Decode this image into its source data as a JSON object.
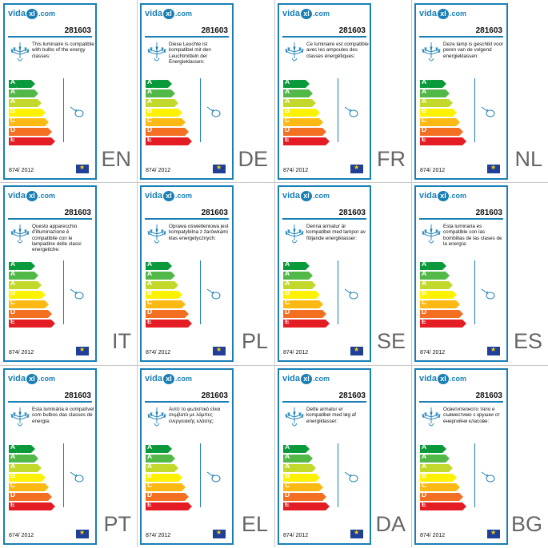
{
  "product_code": "281603",
  "brand": {
    "pre": "vida",
    "mid": "xl",
    "post": ".com"
  },
  "regulation": "874/ 2012",
  "energy_classes": [
    {
      "label": "A",
      "sup": "++",
      "color": "#0a9a3c",
      "width": 0.55
    },
    {
      "label": "A",
      "sup": "+",
      "color": "#52b848",
      "width": 0.62
    },
    {
      "label": "A",
      "sup": "",
      "color": "#c2d92b",
      "width": 0.69
    },
    {
      "label": "B",
      "sup": "",
      "color": "#fff200",
      "width": 0.76
    },
    {
      "label": "C",
      "sup": "",
      "color": "#fdb913",
      "width": 0.83
    },
    {
      "label": "D",
      "sup": "",
      "color": "#f36f21",
      "width": 0.9
    },
    {
      "label": "E",
      "sup": "",
      "color": "#e31d23",
      "width": 0.97
    }
  ],
  "labels": [
    {
      "lang": "EN",
      "text": "This luminaire is compatible with bulbs of the energy classes:"
    },
    {
      "lang": "DE",
      "text": "Diese Leuchte ist kompatibel mit den Leuchtmitteln der Energieklassen:"
    },
    {
      "lang": "FR",
      "text": "Ce luminaire est compatible avec les ampoules des classes énergétiques:"
    },
    {
      "lang": "NL",
      "text": "Deze lamp is geschikt voor peren van de volgend energieklassen:"
    },
    {
      "lang": "IT",
      "text": "Questo apparecchio d'illuminazione è compatibile con le lampadine delle classi energetiche:"
    },
    {
      "lang": "PL",
      "text": "Oprawa oświetleniowa jest kompatybilna z żarówkami klas energetycznych:"
    },
    {
      "lang": "SE",
      "text": "Denna armatur är kompatibel med lampor av följande energiklasser:"
    },
    {
      "lang": "ES",
      "text": "Esta luminaria es compatible con las bombillas de las clases de la energía:"
    },
    {
      "lang": "PT",
      "text": "Esta luminária é compatível com bulbos das classes de energia:"
    },
    {
      "lang": "EL",
      "text": "Αυτό το φωτιστικό είναι συμβατό με λάμπες ενεργειακής κλάσης:"
    },
    {
      "lang": "DA",
      "text": "Dette armatur er kompatibel med løg af energiklasser:"
    },
    {
      "lang": "BG",
      "text": "Осветителното тяло е съвместимо с крушки от енергийни класове:"
    }
  ]
}
